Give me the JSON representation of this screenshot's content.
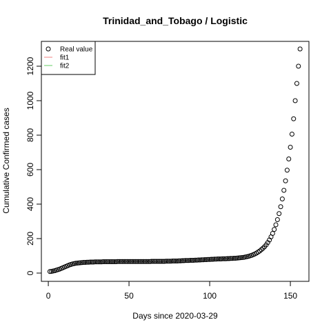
{
  "chart_data": {
    "type": "scatter",
    "title": "Trinidad_and_Tobago / Logistic",
    "x_label": "Days since 2020-03-29",
    "y_label": "Cumulative Confirmed cases",
    "x": [
      1,
      2,
      3,
      4,
      5,
      6,
      7,
      8,
      9,
      10,
      11,
      12,
      13,
      14,
      15,
      16,
      17,
      18,
      19,
      20,
      21,
      22,
      23,
      24,
      25,
      26,
      27,
      28,
      29,
      30,
      31,
      32,
      33,
      34,
      35,
      36,
      37,
      38,
      39,
      40,
      41,
      42,
      43,
      44,
      45,
      46,
      47,
      48,
      49,
      50,
      51,
      52,
      53,
      54,
      55,
      56,
      57,
      58,
      59,
      60,
      61,
      62,
      63,
      64,
      65,
      66,
      67,
      68,
      69,
      70,
      71,
      72,
      73,
      74,
      75,
      76,
      77,
      78,
      79,
      80,
      81,
      82,
      83,
      84,
      85,
      86,
      87,
      88,
      89,
      90,
      91,
      92,
      93,
      94,
      95,
      96,
      97,
      98,
      99,
      100,
      101,
      102,
      103,
      104,
      105,
      106,
      107,
      108,
      109,
      110,
      111,
      112,
      113,
      114,
      115,
      116,
      117,
      118,
      119,
      120,
      121,
      122,
      123,
      124,
      125,
      126,
      127,
      128,
      129,
      130,
      131,
      132,
      133,
      134,
      135,
      136,
      137,
      138,
      139,
      140,
      141,
      142,
      143,
      144,
      145,
      146,
      147,
      148,
      149,
      150,
      151,
      152,
      153,
      154,
      155,
      156
    ],
    "series": [
      {
        "name": "Real value",
        "color": "#000000",
        "values": [
          9,
          10,
          12,
          14,
          17,
          20,
          23,
          27,
          31,
          35,
          39,
          43,
          47,
          50,
          53,
          55,
          57,
          58,
          59,
          60,
          61,
          62,
          62,
          63,
          63,
          64,
          64,
          64,
          65,
          65,
          65,
          65,
          65,
          66,
          66,
          66,
          66,
          66,
          66,
          66,
          66,
          66,
          67,
          67,
          67,
          67,
          67,
          67,
          67,
          67,
          67,
          67,
          67,
          67,
          67,
          67,
          67,
          67,
          67,
          67,
          67,
          67,
          67,
          68,
          68,
          68,
          68,
          68,
          68,
          68,
          68,
          68,
          69,
          69,
          69,
          69,
          70,
          70,
          70,
          70,
          71,
          71,
          72,
          72,
          73,
          73,
          73,
          74,
          74,
          74,
          75,
          75,
          76,
          76,
          77,
          77,
          78,
          78,
          79,
          79,
          80,
          80,
          81,
          81,
          82,
          82,
          82,
          83,
          83,
          83,
          84,
          84,
          85,
          85,
          86,
          86,
          87,
          88,
          89,
          90,
          91,
          93,
          95,
          97,
          100,
          103,
          107,
          111,
          116,
          122,
          128,
          136,
          144,
          153,
          164,
          177,
          192,
          210,
          230,
          253,
          280,
          310,
          345,
          385,
          430,
          480,
          535,
          597,
          662,
          730,
          806,
          895,
          1000,
          1100,
          1200,
          1300
        ]
      }
    ],
    "legend": [
      {
        "name": "Real value",
        "color": "#000000",
        "marker": "circle"
      },
      {
        "name": "fit1",
        "color": "#f08080",
        "marker": "line"
      },
      {
        "name": "fit2",
        "color": "#66cc66",
        "marker": "line"
      }
    ],
    "legend_position": "top-left",
    "xlim": [
      -4.3,
      161.5
    ],
    "ylim": [
      -48,
      1344
    ],
    "xticks": [
      0,
      50,
      100,
      150
    ],
    "yticks": [
      0,
      200,
      400,
      600,
      800,
      1000,
      1200
    ]
  }
}
